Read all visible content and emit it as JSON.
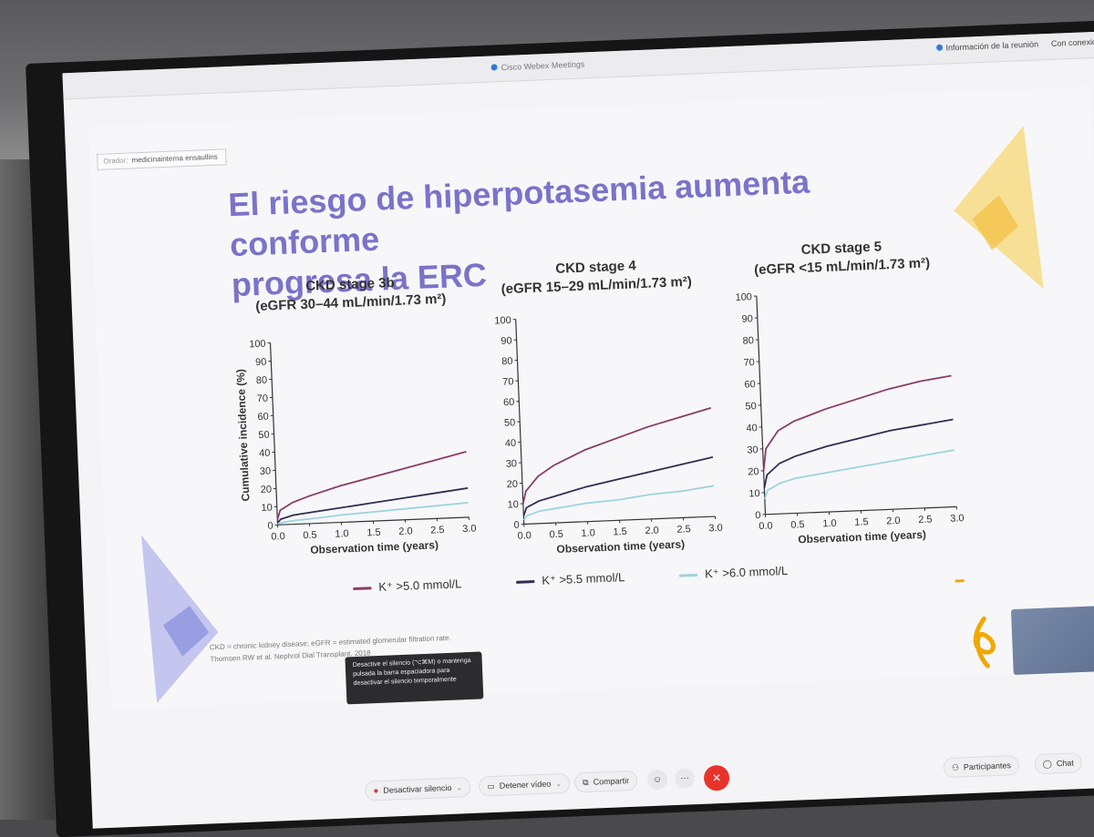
{
  "webex": {
    "app_title": "Cisco Webex Meetings",
    "meeting_info": "Información de la reunión",
    "connection": "Con conexión"
  },
  "slide": {
    "chip_prefix": "Orador:",
    "chip_text": "medicinainterna ensaullins",
    "title_line1": "El riesgo de hiperpotasemia aumenta conforme",
    "title_line2": "progresa la ERC",
    "footnote_line1": "CKD = chronic kidney disease; eGFR = estimated glomerular filtration rate.",
    "footnote_line2": "Thomsen RW et al. Nephrol Dial Transplant. 2018"
  },
  "tooltip": {
    "text": "Desactive el silencio (⌥⌘M) o mantenga pulsada la barra espaciadora para desactivar el silencio temporalmente"
  },
  "toolbar": {
    "unmute": "Desactivar silencio",
    "stop_video": "Detener vídeo",
    "share": "Compartir",
    "participants": "Participantes",
    "chat": "Chat"
  },
  "legend": [
    {
      "label": "K⁺ >5.0 mmol/L",
      "color": "#8c3a68"
    },
    {
      "label": "K⁺ >5.5 mmol/L",
      "color": "#2e2f52"
    },
    {
      "label": "K⁺ >6.0 mmol/L",
      "color": "#9ed3df"
    }
  ],
  "chart_data": [
    {
      "type": "line",
      "title": "CKD stage 3b",
      "subtitle": "(eGFR 30–44 mL/min/1.73 m²)",
      "xlabel": "Observation time (years)",
      "ylabel": "Cumulative incidence (%)",
      "xlim": [
        0,
        3
      ],
      "ylim": [
        0,
        100
      ],
      "xticks": [
        "0.0",
        "0.5",
        "1.0",
        "1.5",
        "2.0",
        "2.5",
        "3.0"
      ],
      "yticks": [
        "0",
        "10",
        "20",
        "30",
        "40",
        "50",
        "60",
        "70",
        "80",
        "90",
        "100"
      ],
      "x": [
        0,
        0.05,
        0.25,
        0.5,
        1.0,
        1.5,
        2.0,
        2.5,
        3.0
      ],
      "series": [
        {
          "name": "K⁺ >5.0 mmol/L",
          "values": [
            3,
            8,
            12,
            15,
            20,
            24,
            28,
            32,
            36
          ]
        },
        {
          "name": "K⁺ >5.5 mmol/L",
          "values": [
            1,
            3,
            5,
            6,
            8,
            10,
            12,
            14,
            16
          ]
        },
        {
          "name": "K⁺ >6.0 mmol/L",
          "values": [
            0.5,
            1,
            2,
            2.5,
            4,
            5,
            6,
            7,
            8
          ]
        }
      ]
    },
    {
      "type": "line",
      "title": "CKD stage 4",
      "subtitle": "(eGFR 15–29 mL/min/1.73 m²)",
      "xlabel": "Observation time (years)",
      "ylabel": "",
      "xlim": [
        0,
        3
      ],
      "ylim": [
        0,
        100
      ],
      "xticks": [
        "0.0",
        "0.5",
        "1.0",
        "1.5",
        "2.0",
        "2.5",
        "3.0"
      ],
      "yticks": [
        "0",
        "10",
        "20",
        "30",
        "40",
        "50",
        "60",
        "70",
        "80",
        "90",
        "100"
      ],
      "x": [
        0,
        0.05,
        0.25,
        0.5,
        1.0,
        1.5,
        2.0,
        2.5,
        3.0
      ],
      "series": [
        {
          "name": "K⁺ >5.0 mmol/L",
          "values": [
            10,
            16,
            23,
            28,
            35,
            40,
            45,
            49,
            53
          ]
        },
        {
          "name": "K⁺ >5.5 mmol/L",
          "values": [
            4,
            8,
            11,
            13,
            17,
            20,
            23,
            26,
            29
          ]
        },
        {
          "name": "K⁺ >6.0 mmol/L",
          "values": [
            2,
            4,
            6,
            7,
            9,
            10,
            12,
            13,
            15
          ]
        }
      ]
    },
    {
      "type": "line",
      "title": "CKD stage 5",
      "subtitle": "(eGFR <15 mL/min/1.73 m²)",
      "xlabel": "Observation time (years)",
      "ylabel": "",
      "xlim": [
        0,
        3
      ],
      "ylim": [
        0,
        100
      ],
      "xticks": [
        "0.0",
        "0.5",
        "1.0",
        "1.5",
        "2.0",
        "2.5",
        "3.0"
      ],
      "yticks": [
        "0",
        "10",
        "20",
        "30",
        "40",
        "50",
        "60",
        "70",
        "80",
        "90",
        "100"
      ],
      "x": [
        0,
        0.05,
        0.25,
        0.5,
        1.0,
        1.5,
        2.0,
        2.5,
        3.0
      ],
      "series": [
        {
          "name": "K⁺ >5.0 mmol/L",
          "values": [
            20,
            30,
            38,
            42,
            47,
            51,
            55,
            58,
            60
          ]
        },
        {
          "name": "K⁺ >5.5 mmol/L",
          "values": [
            12,
            18,
            23,
            26,
            30,
            33,
            36,
            38,
            40
          ]
        },
        {
          "name": "K⁺ >6.0 mmol/L",
          "values": [
            7,
            11,
            14,
            16,
            18,
            20,
            22,
            24,
            26
          ]
        }
      ]
    }
  ]
}
